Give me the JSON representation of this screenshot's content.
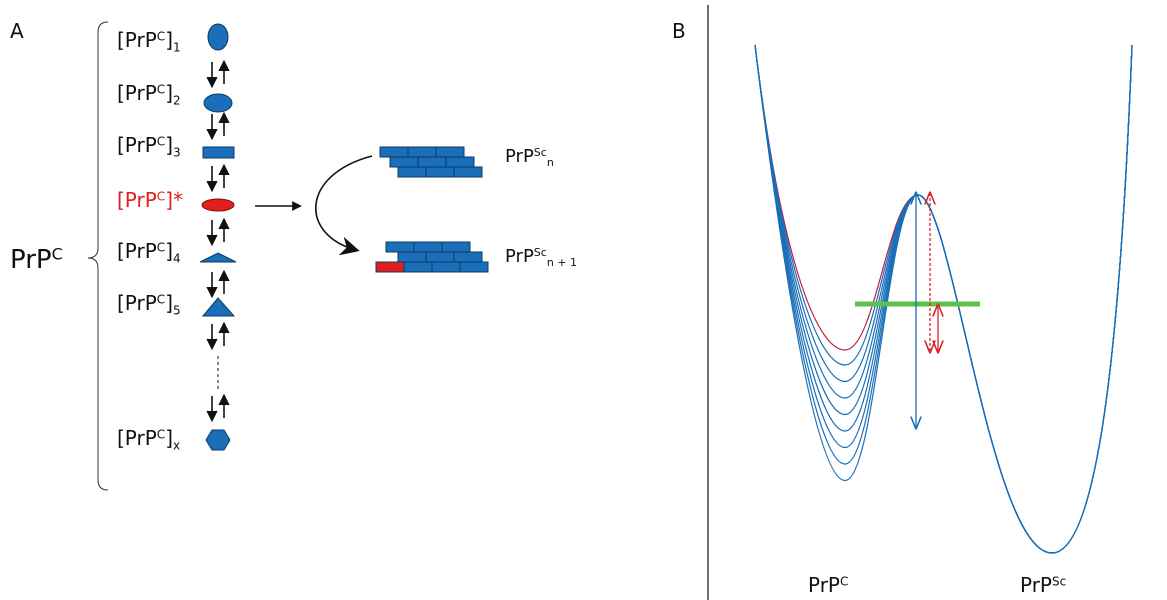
{
  "panel_a": {
    "label": "A",
    "group": {
      "text": "PrP",
      "sup": "C"
    },
    "species": [
      {
        "text": "[PrP",
        "sup": "C",
        "after": "]",
        "sub": "1"
      },
      {
        "text": "[PrP",
        "sup": "C",
        "after": "]",
        "sub": "2"
      },
      {
        "text": "[PrP",
        "sup": "C",
        "after": "]",
        "sub": "3"
      },
      {
        "text": "[PrP",
        "sup": "C",
        "after": "]*"
      },
      {
        "text": "[PrP",
        "sup": "C",
        "after": "]",
        "sub": "4"
      },
      {
        "text": "[PrP",
        "sup": "C",
        "after": "]",
        "sub": "5"
      },
      {
        "text": "[PrP",
        "sup": "C",
        "after": "]",
        "sub": "x"
      }
    ],
    "products": [
      {
        "text": "PrP",
        "sup": "Sc",
        "sub": "n"
      },
      {
        "text": "PrP",
        "sup": "Sc",
        "sub": "n + 1"
      }
    ]
  },
  "panel_b": {
    "label": "B",
    "wells": [
      {
        "text": "PrP",
        "sup": "C"
      },
      {
        "text": "PrP",
        "sup": "Sc"
      }
    ]
  }
}
